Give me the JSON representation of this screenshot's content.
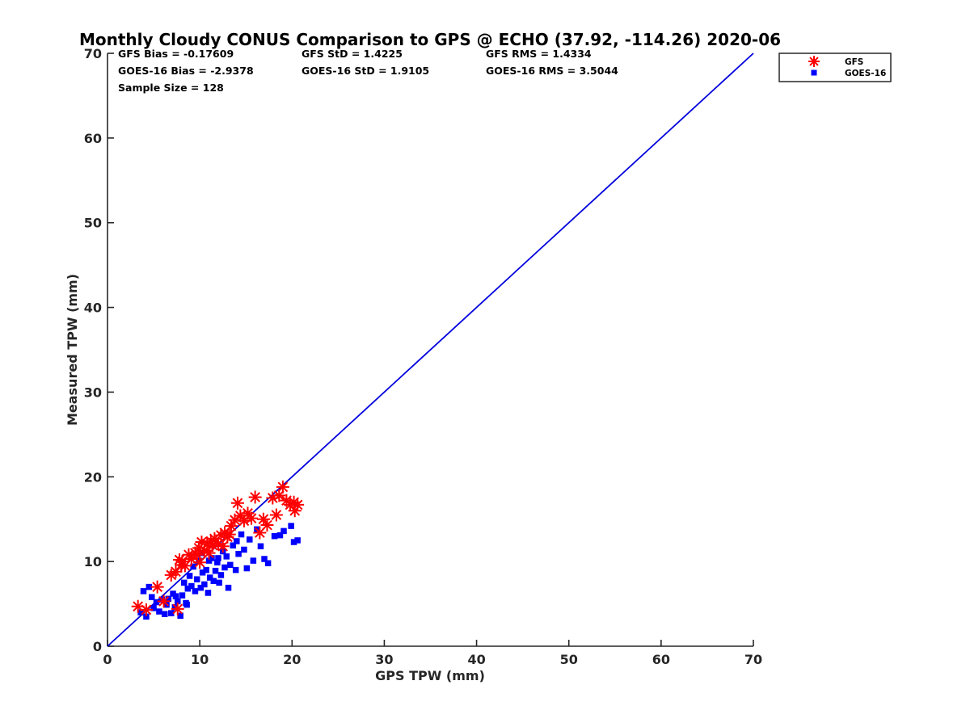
{
  "chart_data": {
    "type": "scatter",
    "title": "Monthly Cloudy CONUS Comparison to GPS @ ECHO (37.92, -114.26) 2020-06",
    "xlabel": "GPS TPW (mm)",
    "ylabel": "Measured TPW (mm)",
    "xlim": [
      0,
      70
    ],
    "ylim": [
      0,
      70
    ],
    "xticks": [
      "0",
      "10",
      "20",
      "30",
      "40",
      "50",
      "60",
      "70"
    ],
    "yticks": [
      "0",
      "10",
      "20",
      "30",
      "40",
      "50",
      "60",
      "70"
    ],
    "grid": false,
    "legend_position": "outside-top-right",
    "stats": [
      "GFS Bias = -0.17609",
      "GFS StD = 1.4225",
      "GFS RMS = 1.4334",
      "GOES-16 Bias = -2.9378",
      "GOES-16 StD = 1.9105",
      "GOES-16 RMS = 3.5044",
      "Sample Size = 128"
    ],
    "reference_line": {
      "x": [
        0,
        70
      ],
      "y": [
        0,
        70
      ],
      "color": "#0000dd"
    },
    "series": [
      {
        "name": "GFS",
        "marker": "asterisk",
        "color": "#ff0000",
        "points": [
          [
            3.3,
            4.7
          ],
          [
            4.2,
            4.3
          ],
          [
            5.4,
            7.0
          ],
          [
            6.1,
            5.3
          ],
          [
            6.9,
            8.4
          ],
          [
            7.4,
            8.8
          ],
          [
            7.8,
            10.2
          ],
          [
            8.1,
            10.0
          ],
          [
            8.4,
            9.5
          ],
          [
            8.8,
            10.8
          ],
          [
            9.1,
            10.3
          ],
          [
            9.5,
            11.0
          ],
          [
            9.9,
            11.6
          ],
          [
            10.2,
            12.3
          ],
          [
            10.5,
            11.3
          ],
          [
            10.8,
            12.1
          ],
          [
            11.2,
            12.4
          ],
          [
            11.6,
            12.7
          ],
          [
            12.0,
            12.1
          ],
          [
            12.3,
            13.1
          ],
          [
            12.7,
            13.4
          ],
          [
            13.0,
            12.9
          ],
          [
            13.4,
            14.2
          ],
          [
            13.8,
            14.9
          ],
          [
            14.1,
            16.9
          ],
          [
            14.4,
            15.4
          ],
          [
            14.8,
            14.8
          ],
          [
            15.2,
            15.7
          ],
          [
            15.6,
            15.1
          ],
          [
            16.0,
            17.6
          ],
          [
            16.5,
            13.4
          ],
          [
            16.9,
            15.0
          ],
          [
            17.3,
            14.3
          ],
          [
            17.9,
            17.5
          ],
          [
            18.3,
            15.5
          ],
          [
            18.6,
            17.8
          ],
          [
            19.0,
            18.8
          ],
          [
            19.4,
            17.2
          ],
          [
            19.8,
            16.7
          ],
          [
            20.3,
            16.0
          ],
          [
            20.6,
            16.7
          ],
          [
            20.2,
            17.0
          ],
          [
            7.6,
            4.4
          ],
          [
            8.0,
            9.6
          ],
          [
            10.0,
            9.9
          ],
          [
            11.0,
            11.0
          ],
          [
            12.5,
            11.8
          ],
          [
            13.2,
            13.2
          ],
          [
            11.4,
            11.9
          ],
          [
            9.7,
            10.8
          ]
        ]
      },
      {
        "name": "GOES-16",
        "marker": "square",
        "color": "#0000ff",
        "points": [
          [
            3.6,
            4.0
          ],
          [
            3.9,
            6.5
          ],
          [
            4.2,
            3.5
          ],
          [
            4.5,
            7.0
          ],
          [
            4.8,
            5.8
          ],
          [
            5.0,
            4.5
          ],
          [
            5.3,
            5.2
          ],
          [
            5.6,
            4.1
          ],
          [
            5.9,
            5.5
          ],
          [
            6.2,
            3.8
          ],
          [
            6.4,
            4.9
          ],
          [
            6.6,
            5.6
          ],
          [
            6.9,
            3.9
          ],
          [
            7.1,
            6.2
          ],
          [
            7.3,
            4.6
          ],
          [
            7.6,
            5.3
          ],
          [
            7.9,
            3.6
          ],
          [
            8.1,
            6.0
          ],
          [
            8.3,
            7.5
          ],
          [
            8.5,
            5.1
          ],
          [
            8.7,
            6.8
          ],
          [
            8.9,
            8.3
          ],
          [
            9.1,
            7.1
          ],
          [
            9.3,
            9.4
          ],
          [
            9.5,
            6.5
          ],
          [
            9.7,
            7.9
          ],
          [
            9.9,
            10.1
          ],
          [
            10.1,
            6.9
          ],
          [
            10.3,
            8.7
          ],
          [
            10.5,
            7.3
          ],
          [
            10.7,
            9.0
          ],
          [
            10.9,
            6.3
          ],
          [
            11.1,
            8.1
          ],
          [
            11.3,
            10.4
          ],
          [
            11.5,
            7.7
          ],
          [
            11.7,
            8.9
          ],
          [
            11.9,
            9.9
          ],
          [
            12.1,
            7.5
          ],
          [
            12.3,
            8.4
          ],
          [
            12.5,
            11.2
          ],
          [
            12.7,
            9.3
          ],
          [
            12.9,
            10.6
          ],
          [
            13.1,
            6.9
          ],
          [
            13.3,
            9.6
          ],
          [
            13.6,
            11.9
          ],
          [
            13.9,
            9.0
          ],
          [
            14.2,
            10.9
          ],
          [
            14.5,
            13.2
          ],
          [
            14.8,
            11.4
          ],
          [
            15.1,
            9.2
          ],
          [
            15.4,
            12.6
          ],
          [
            15.8,
            10.1
          ],
          [
            16.2,
            13.8
          ],
          [
            16.6,
            11.8
          ],
          [
            17.0,
            10.3
          ],
          [
            17.4,
            9.8
          ],
          [
            18.1,
            13.0
          ],
          [
            18.7,
            13.1
          ],
          [
            19.1,
            13.6
          ],
          [
            19.9,
            14.2
          ],
          [
            20.2,
            12.3
          ],
          [
            20.6,
            12.5
          ],
          [
            7.4,
            5.9
          ],
          [
            8.6,
            4.9
          ],
          [
            10.2,
            11.0
          ],
          [
            12.0,
            10.4
          ],
          [
            14.0,
            12.4
          ],
          [
            11.0,
            10.1
          ]
        ]
      }
    ]
  }
}
